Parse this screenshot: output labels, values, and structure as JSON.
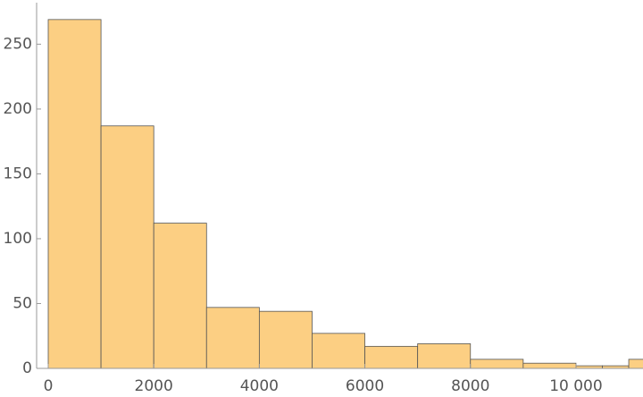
{
  "chart_data": {
    "type": "histogram",
    "bins": [
      0,
      1000,
      2000,
      3000,
      4000,
      5000,
      6000,
      7000,
      8000,
      9000,
      10000,
      10500,
      11000,
      11500
    ],
    "values": [
      269,
      187,
      112,
      47,
      44,
      27,
      17,
      19,
      7,
      4,
      2,
      2,
      7
    ],
    "color": "#fccf83",
    "xlim": [
      -220,
      11270
    ],
    "ylim": [
      0,
      282
    ],
    "xticks": [
      0,
      2000,
      4000,
      6000,
      8000,
      {
        "value": 10000,
        "label": "10 000"
      }
    ],
    "yticks": [
      0,
      50,
      100,
      150,
      200,
      250
    ]
  }
}
